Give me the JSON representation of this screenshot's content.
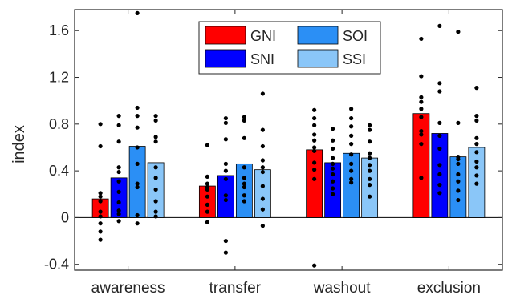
{
  "chart_data": {
    "type": "bar",
    "ylabel": "index",
    "xlabel": "",
    "ylim": [
      -0.45,
      1.78
    ],
    "yticks": [
      -0.4,
      0,
      0.4,
      0.8,
      1.2,
      1.6
    ],
    "ytick_labels": [
      "-0.4",
      "0",
      "0.4",
      "0.8",
      "1.2",
      "1.6"
    ],
    "categories": [
      "awareness",
      "transfer",
      "washout",
      "exclusion"
    ],
    "legend_position": "top",
    "grid": false,
    "series": [
      {
        "name": "GNI",
        "color": "#ff0000",
        "values": [
          0.16,
          0.27,
          0.58,
          0.89
        ],
        "points": [
          [
            0.8,
            0.61,
            0.21,
            0.18,
            0.14,
            0.05,
            0.01,
            -0.05,
            -0.12,
            -0.19
          ],
          [
            0.62,
            0.35,
            0.29,
            0.26,
            0.24,
            0.18,
            0.11,
            0.05,
            -0.04
          ],
          [
            0.92,
            0.85,
            0.79,
            0.71,
            0.66,
            0.6,
            0.57,
            0.47,
            0.41,
            0.33,
            -0.41
          ],
          [
            1.53,
            1.21,
            1.03,
            0.99,
            0.93,
            0.86,
            0.74,
            0.71,
            0.63,
            0.34
          ]
        ]
      },
      {
        "name": "SNI",
        "color": "#0000ff",
        "values": [
          0.34,
          0.36,
          0.47,
          0.72
        ],
        "points": [
          [
            0.87,
            0.79,
            0.65,
            0.43,
            0.39,
            0.31,
            0.22,
            0.13,
            0.06,
            0.03,
            -0.03
          ],
          [
            0.85,
            0.81,
            0.67,
            0.46,
            0.4,
            0.33,
            0.19,
            0.15,
            -0.2,
            -0.3
          ],
          [
            0.76,
            0.66,
            0.59,
            0.51,
            0.46,
            0.42,
            0.37,
            0.31,
            0.25,
            0.2
          ],
          [
            1.64,
            1.15,
            1.08,
            0.81,
            0.7,
            0.59,
            0.45,
            0.37,
            0.28,
            0.21
          ]
        ]
      },
      {
        "name": "SOI",
        "color": "#2b8ff5",
        "values": [
          0.61,
          0.46,
          0.55,
          0.52
        ],
        "points": [
          [
            1.75,
            0.94,
            0.87,
            0.77,
            0.6,
            0.46,
            0.29,
            0.26,
            0.02,
            -0.05
          ],
          [
            0.86,
            0.83,
            0.68,
            0.43,
            0.34,
            0.29,
            0.26,
            0.19,
            0.14
          ],
          [
            0.93,
            0.85,
            0.78,
            0.7,
            0.63,
            0.54,
            0.46,
            0.4,
            0.33,
            0.3
          ],
          [
            1.59,
            0.81,
            0.52,
            0.5,
            0.46,
            0.37,
            0.31,
            0.23,
            0.15
          ]
        ]
      },
      {
        "name": "SSI",
        "color": "#8ac6f8",
        "values": [
          0.47,
          0.41,
          0.51,
          0.6
        ],
        "points": [
          [
            0.87,
            0.83,
            0.69,
            0.65,
            0.43,
            0.34,
            0.24,
            0.14,
            0.05,
            0.01
          ],
          [
            1.06,
            0.75,
            0.61,
            0.49,
            0.43,
            0.39,
            0.27,
            0.16,
            0.07,
            -0.07
          ],
          [
            0.79,
            0.75,
            0.65,
            0.55,
            0.51,
            0.45,
            0.4,
            0.33,
            0.28,
            0.18
          ],
          [
            1.11,
            0.87,
            0.83,
            0.68,
            0.63,
            0.56,
            0.48,
            0.43,
            0.36,
            0.29
          ]
        ]
      }
    ]
  }
}
